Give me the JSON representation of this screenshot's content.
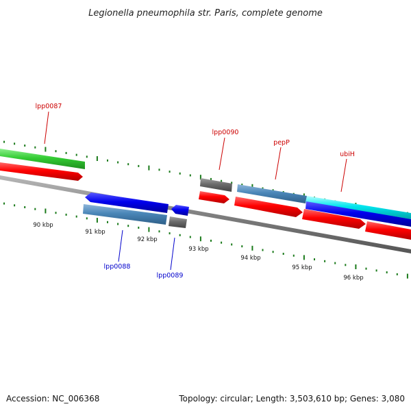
{
  "title": "Legionella pneumophila str. Paris, complete genome",
  "footer": {
    "accession": "Accession: NC_006368",
    "summary": "Topology: circular; Length: 3,503,610 bp; Genes: 3,080"
  },
  "colors": {
    "backbone": "#808080",
    "tick": "#1a7a1a",
    "forward_label": "#cc0000",
    "reverse_label": "#0000cc",
    "cds_red": "#ff0000",
    "cds_green": "#33cc33",
    "cds_blue": "#0000ee",
    "cds_steel": "#4a86b8",
    "cds_gray": "#6b6b6b",
    "cds_cyan": "#00e5ee"
  },
  "scale": {
    "unit": "kbp",
    "labels": [
      "90 kbp",
      "91 kbp",
      "92 kbp",
      "93 kbp",
      "94 kbp",
      "95 kbp",
      "96 kbp"
    ]
  },
  "gene_labels": {
    "lpp0087": "lpp0087",
    "lpp0088": "lpp0088",
    "lpp0089": "lpp0089",
    "lpp0090": "lpp0090",
    "pepP": "pepP",
    "ubiH": "ubiH"
  }
}
